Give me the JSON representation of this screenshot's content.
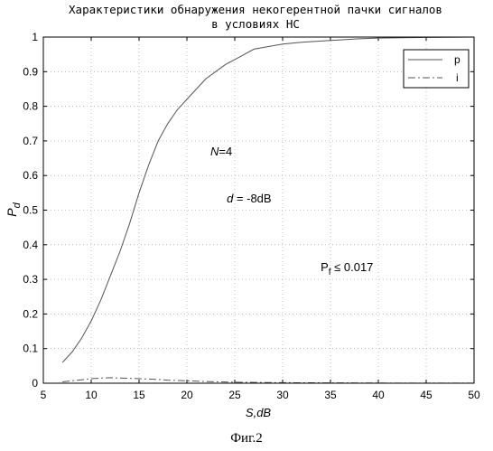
{
  "chart_data": {
    "type": "line",
    "title_line1": "Характеристики обнаружения некогерентной пачки сигналов",
    "title_line2": "в условиях НС",
    "xlabel": "S,dB",
    "ylabel_main": "P",
    "ylabel_sub": "d",
    "xlim": [
      5,
      50
    ],
    "ylim": [
      0,
      1
    ],
    "x_ticks": [
      5,
      10,
      15,
      20,
      25,
      30,
      35,
      40,
      45,
      50
    ],
    "y_ticks": [
      0,
      0.1,
      0.2,
      0.3,
      0.4,
      0.5,
      0.6,
      0.7,
      0.8,
      0.9,
      1
    ],
    "x_tick_labels": [
      "5",
      "10",
      "15",
      "20",
      "25",
      "30",
      "35",
      "40",
      "45",
      "50"
    ],
    "y_tick_labels": [
      "0",
      "0.1",
      "0.2",
      "0.3",
      "0.4",
      "0.5",
      "0.6",
      "0.7",
      "0.8",
      "0.9",
      "1"
    ],
    "grid": true,
    "legend_position": "top-right",
    "series": [
      {
        "name": "p",
        "style": "solid",
        "color": "#555555",
        "x": [
          7,
          8,
          9,
          10,
          11,
          12,
          13,
          14,
          15,
          16,
          17,
          18,
          19,
          20,
          21,
          22,
          23,
          24,
          25,
          26,
          27,
          28,
          30,
          32,
          35,
          38,
          40,
          45,
          50
        ],
        "y": [
          0.06,
          0.09,
          0.13,
          0.18,
          0.24,
          0.31,
          0.38,
          0.46,
          0.55,
          0.63,
          0.7,
          0.75,
          0.79,
          0.82,
          0.85,
          0.88,
          0.9,
          0.92,
          0.935,
          0.95,
          0.965,
          0.97,
          0.98,
          0.985,
          0.99,
          0.995,
          0.997,
          0.999,
          1.0
        ]
      },
      {
        "name": "i",
        "style": "dashdot",
        "color": "#555555",
        "x": [
          7,
          8,
          9,
          10,
          11,
          12,
          13,
          14,
          15,
          16,
          17,
          18,
          20,
          22,
          25,
          28,
          30,
          35,
          40,
          45,
          50
        ],
        "y": [
          0.004,
          0.007,
          0.01,
          0.013,
          0.015,
          0.016,
          0.015,
          0.014,
          0.013,
          0.012,
          0.011,
          0.009,
          0.007,
          0.005,
          0.003,
          0.002,
          0.0015,
          0.001,
          0.0005,
          0.0003,
          0.0002
        ]
      }
    ],
    "annotations": {
      "n_label": "N",
      "n_value": "=4",
      "d_label": "d",
      "d_value": " = -8dB",
      "pf_main": "P",
      "pf_sub": "f",
      "pf_value": " ≤ 0.017"
    },
    "caption": "Фиг.2"
  }
}
